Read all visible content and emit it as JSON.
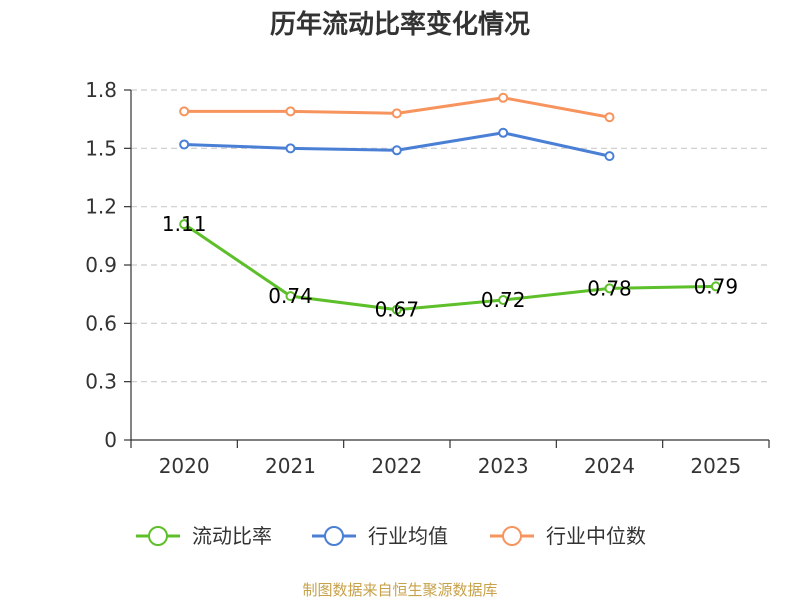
{
  "chart_data": {
    "type": "line",
    "title": "历年流动比率变化情况",
    "categories": [
      "2020",
      "2021",
      "2022",
      "2023",
      "2024",
      "2025"
    ],
    "y_ticks": [
      "0",
      "0.3",
      "0.6",
      "0.9",
      "1.2",
      "1.5",
      "1.8"
    ],
    "ylim": [
      0,
      1.8
    ],
    "grid": true,
    "legend_position": "bottom",
    "series": [
      {
        "name": "流动比率",
        "color": "#5dbf2a",
        "values": [
          1.11,
          0.74,
          0.67,
          0.72,
          0.78,
          0.79
        ],
        "data_labels": [
          "1.11",
          "0.74",
          "0.67",
          "0.72",
          "0.78",
          "0.79"
        ]
      },
      {
        "name": "行业均值",
        "color": "#4a7fd6",
        "values": [
          1.52,
          1.5,
          1.49,
          1.58,
          1.46,
          null
        ]
      },
      {
        "name": "行业中位数",
        "color": "#f7945e",
        "values": [
          1.69,
          1.69,
          1.68,
          1.76,
          1.66,
          null
        ]
      }
    ],
    "source": "制图数据来自恒生聚源数据库"
  }
}
